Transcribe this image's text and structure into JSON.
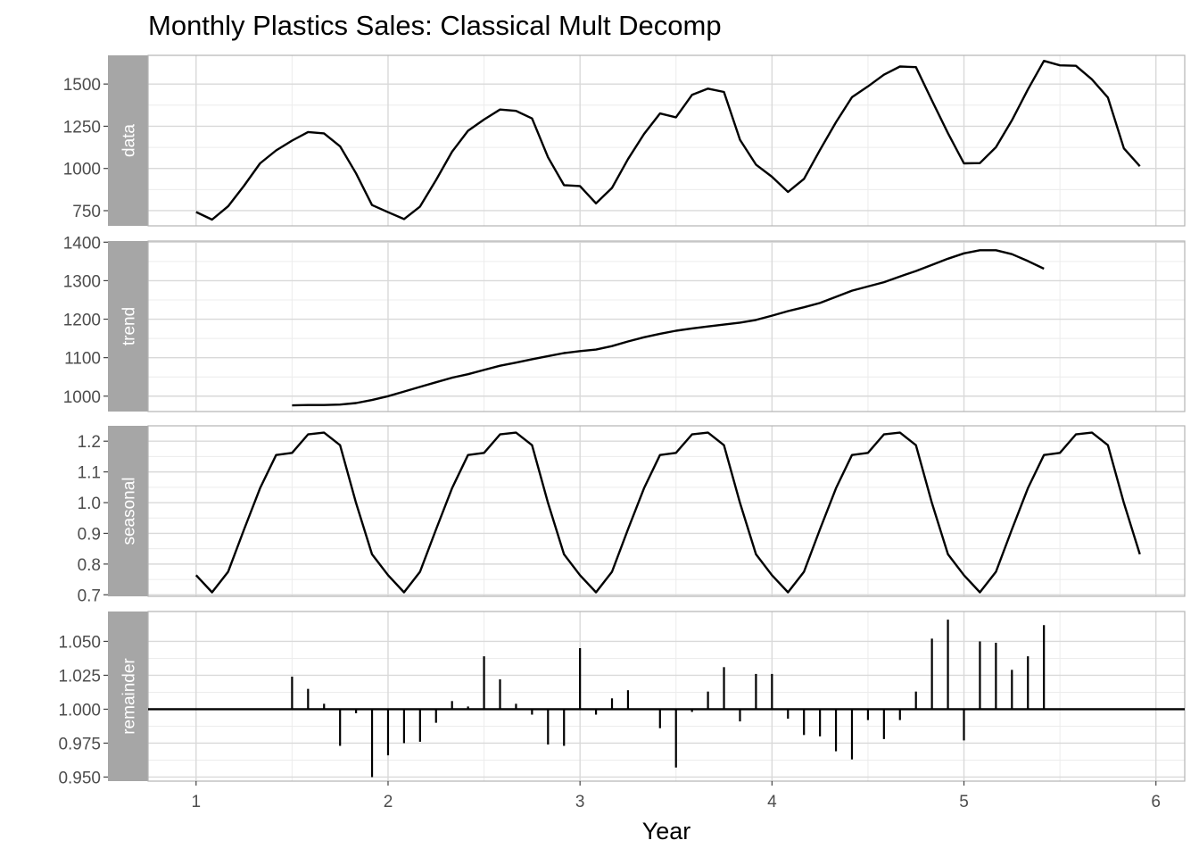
{
  "chart_data": {
    "type": "line",
    "title": "Monthly Plastics Sales: Classical Mult Decomp",
    "xlabel": "Year",
    "xlim": [
      0.75,
      6.15
    ],
    "x_ticks": [
      1,
      2,
      3,
      4,
      5,
      6
    ],
    "grid": true,
    "panels": [
      {
        "id": "data",
        "label": "data",
        "kind": "line",
        "ylim": [
          660,
          1670
        ],
        "y_ticks": [
          750,
          1000,
          1250,
          1500
        ],
        "x_start": 1,
        "step": 0.08333,
        "values": [
          742,
          697,
          776,
          898,
          1030,
          1107,
          1165,
          1216,
          1208,
          1131,
          971,
          783,
          741,
          700,
          774,
          932,
          1099,
          1223,
          1290,
          1349,
          1341,
          1296,
          1066,
          901,
          896,
          793,
          885,
          1055,
          1204,
          1326,
          1303,
          1436,
          1473,
          1453,
          1170,
          1023,
          951,
          861,
          938,
          1109,
          1274,
          1422,
          1486,
          1555,
          1604,
          1600,
          1403,
          1209,
          1030,
          1032,
          1126,
          1285,
          1468,
          1637,
          1611,
          1608,
          1528,
          1420,
          1119,
          1013
        ]
      },
      {
        "id": "trend",
        "label": "trend",
        "kind": "line",
        "ylim": [
          960,
          1403
        ],
        "y_ticks": [
          1000,
          1100,
          1200,
          1300,
          1400
        ],
        "x_start": 1.5,
        "step": 0.08333,
        "values": [
          976,
          977,
          977,
          978,
          982,
          990,
          1000,
          1012,
          1024,
          1036,
          1048,
          1057,
          1068,
          1079,
          1087,
          1096,
          1104,
          1112,
          1117,
          1121,
          1130,
          1142,
          1153,
          1162,
          1170,
          1176,
          1181,
          1186,
          1191,
          1198,
          1209,
          1221,
          1231,
          1242,
          1258,
          1274,
          1285,
          1296,
          1311,
          1325,
          1341,
          1357,
          1371,
          1379,
          1379,
          1369,
          1351,
          1331
        ]
      },
      {
        "id": "seasonal",
        "label": "seasonal",
        "kind": "line",
        "ylim": [
          0.695,
          1.25
        ],
        "y_ticks": [
          0.7,
          0.8,
          0.9,
          1.0,
          1.1,
          1.2
        ],
        "y_tick_labels": [
          "0.7",
          "0.8",
          "0.9",
          "1.0",
          "1.1",
          "1.2"
        ],
        "x_start": 1,
        "step": 0.08333,
        "pattern": [
          0.764,
          0.708,
          0.775,
          0.913,
          1.047,
          1.155,
          1.162,
          1.222,
          1.228,
          1.187,
          0.999,
          0.832
        ],
        "repeat": 5
      },
      {
        "id": "remainder",
        "label": "remainder",
        "kind": "spikes",
        "baseline": 1.0,
        "ylim": [
          0.947,
          1.072
        ],
        "y_ticks": [
          0.95,
          0.975,
          1.0,
          1.025,
          1.05
        ],
        "y_tick_labels": [
          "0.950",
          "0.975",
          "1.000",
          "1.025",
          "1.050"
        ],
        "x_start": 1.5,
        "step": 0.08333,
        "values": [
          1.024,
          1.015,
          1.004,
          0.973,
          0.997,
          0.95,
          0.966,
          0.975,
          0.976,
          0.99,
          1.006,
          1.002,
          1.039,
          1.022,
          1.004,
          0.996,
          0.974,
          0.973,
          1.045,
          0.996,
          1.008,
          1.014,
          1.0,
          0.986,
          0.957,
          0.998,
          1.013,
          1.031,
          0.991,
          1.026,
          1.026,
          0.993,
          0.981,
          0.98,
          0.969,
          0.963,
          0.992,
          0.978,
          0.992,
          1.013,
          1.052,
          1.066,
          0.977,
          1.05,
          1.049,
          1.029,
          1.039,
          1.062
        ]
      }
    ]
  }
}
